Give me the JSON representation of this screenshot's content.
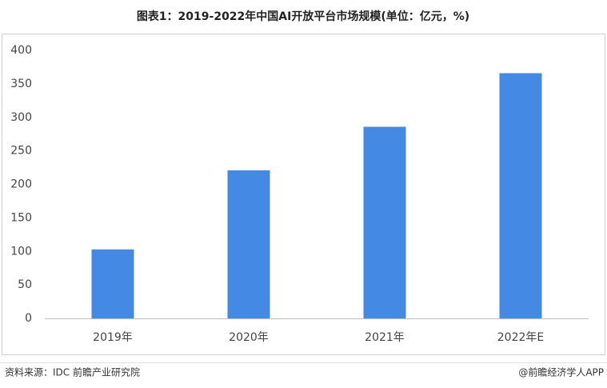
{
  "chart_data": {
    "type": "bar",
    "title": "图表1：2019-2022年中国AI开放平台市场规模(单位：亿元，%)",
    "categories": [
      "2019年",
      "2020年",
      "2021年",
      "2022年E"
    ],
    "values": [
      103,
      221,
      286,
      366
    ],
    "color": "#4489e3",
    "ylim": [
      0,
      400
    ],
    "yticks": [
      0,
      50,
      100,
      150,
      200,
      250,
      300,
      350,
      400
    ],
    "grid": false
  },
  "footer": {
    "source": "资料来源：IDC 前瞻产业研究院",
    "brand": "@前瞻经济学人APP"
  }
}
